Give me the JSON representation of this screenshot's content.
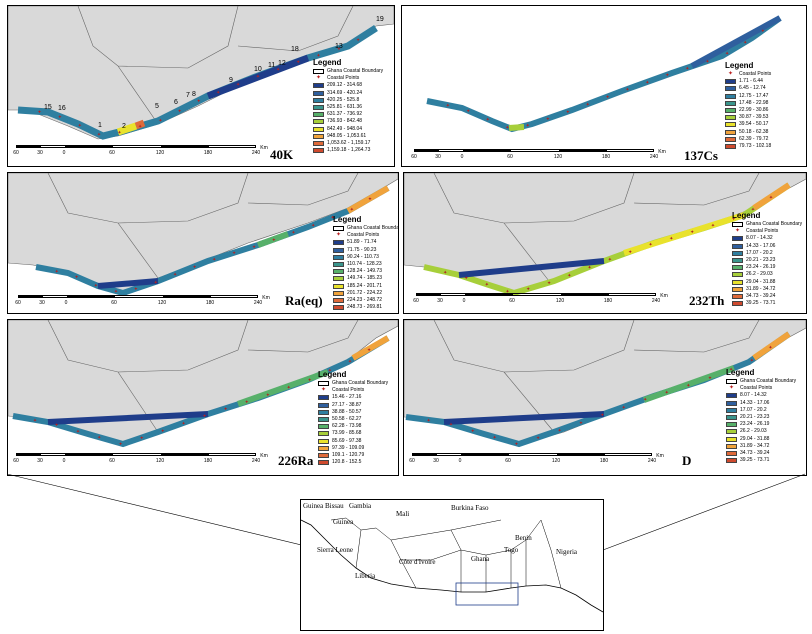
{
  "common": {
    "legend_title": "Legend",
    "boundary_label": "Ghana Coastal Boundary",
    "points_label": "Coastal Points",
    "scale_ticks": [
      "60",
      "30",
      "0",
      "60",
      "120",
      "180",
      "240"
    ],
    "scale_unit": "Km"
  },
  "panels": [
    {
      "id": "k40",
      "label": "40K",
      "ramp": [
        "#1f3d8a",
        "#2f5f9e",
        "#2f7fa0",
        "#3a958c",
        "#57b06a",
        "#a7cf3a",
        "#e9e22c",
        "#f0a33c",
        "#df6a3a",
        "#cf4a2e"
      ],
      "classes": [
        "209.12 - 314.68",
        "314.69 - 420.24",
        "420.25 - 525.8",
        "525.81 - 631.36",
        "631.37 - 736.92",
        "736.93 - 842.48",
        "842.49 - 948.04",
        "948.05 - 1,053.61",
        "1,053.62 - 1,159.17",
        "1,159.18 - 1,264.73"
      ],
      "point_numbers": [
        "1",
        "2",
        "3",
        "4",
        "5",
        "6",
        "7",
        "8",
        "9",
        "10",
        "11",
        "12",
        "13",
        "14",
        "15",
        "16",
        "17",
        "18",
        "19"
      ]
    },
    {
      "id": "cs137",
      "label": "137Cs",
      "ramp": [
        "#1f3d8a",
        "#2f5f9e",
        "#2f7fa0",
        "#3a958c",
        "#57b06a",
        "#a7cf3a",
        "#e9e22c",
        "#f0a33c",
        "#df6a3a",
        "#cf4a2e"
      ],
      "classes": [
        "1.71 - 6.44",
        "6.45 - 12.74",
        "12.75 - 17.47",
        "17.48 - 22.98",
        "22.99 - 30.86",
        "30.87 - 39.53",
        "39.54 - 50.17",
        "50.18 - 62.38",
        "62.39 - 79.72",
        "79.73 - 102.18"
      ]
    },
    {
      "id": "raeq",
      "label": "Ra(eq)",
      "ramp": [
        "#1f3d8a",
        "#2f5f9e",
        "#2f7fa0",
        "#3a958c",
        "#57b06a",
        "#a7cf3a",
        "#e9e22c",
        "#f0a33c",
        "#df6a3a",
        "#cf4a2e"
      ],
      "classes": [
        "51.89 - 71.74",
        "71.75 - 90.23",
        "90.24 - 110.73",
        "110.74 - 128.23",
        "128.24 - 149.73",
        "149.74 - 185.23",
        "185.24 - 201.71",
        "201.72 - 224.22",
        "224.23 - 248.72",
        "248.73 - 269.81"
      ]
    },
    {
      "id": "th232",
      "label": "232Th",
      "ramp": [
        "#1f3d8a",
        "#2f5f9e",
        "#2f7fa0",
        "#3a958c",
        "#57b06a",
        "#a7cf3a",
        "#e9e22c",
        "#f0a33c",
        "#df6a3a",
        "#cf4a2e"
      ],
      "classes": [
        "8.07 - 14.32",
        "14.33 - 17.06",
        "17.07 - 20.2",
        "20.21 - 23.23",
        "23.24 - 26.19",
        "26.2 - 29.03",
        "29.04 - 31.88",
        "31.89 - 34.72",
        "34.73 - 39.24",
        "39.25 - 73.71"
      ]
    },
    {
      "id": "ra226",
      "label": "226Ra",
      "ramp": [
        "#1f3d8a",
        "#2f5f9e",
        "#2f7fa0",
        "#3a958c",
        "#57b06a",
        "#a7cf3a",
        "#e9e22c",
        "#f0a33c",
        "#df6a3a",
        "#cf4a2e"
      ],
      "classes": [
        "15.46 - 27.16",
        "27.17 - 38.87",
        "38.88 - 50.57",
        "50.58 - 62.27",
        "62.28 - 73.98",
        "73.99 - 85.68",
        "85.69 - 97.38",
        "97.39 - 109.09",
        "109.1 - 120.79",
        "120.8 - 152.5"
      ]
    },
    {
      "id": "d",
      "label": "D",
      "ramp": [
        "#1f3d8a",
        "#2f5f9e",
        "#2f7fa0",
        "#3a958c",
        "#57b06a",
        "#a7cf3a",
        "#e9e22c",
        "#f0a33c",
        "#df6a3a",
        "#cf4a2e"
      ],
      "classes": [
        "8.07 - 14.32",
        "14.33 - 17.06",
        "17.07 - 20.2",
        "20.21 - 23.23",
        "23.24 - 26.19",
        "26.2 - 29.03",
        "29.04 - 31.88",
        "31.89 - 34.72",
        "34.73 - 39.24",
        "39.25 - 73.71"
      ]
    }
  ],
  "locator": {
    "countries": [
      "Guinea Bissau",
      "Gambia",
      "Guinea",
      "Sierra Leone",
      "Liberia",
      "Côte d'Ivoire",
      "Mali",
      "Burkina Faso",
      "Ghana",
      "Togo",
      "Benin",
      "Nigeria"
    ]
  },
  "colors": {
    "land": "#d9d9d9",
    "sea": "#ffffff",
    "point": "#b22222"
  }
}
